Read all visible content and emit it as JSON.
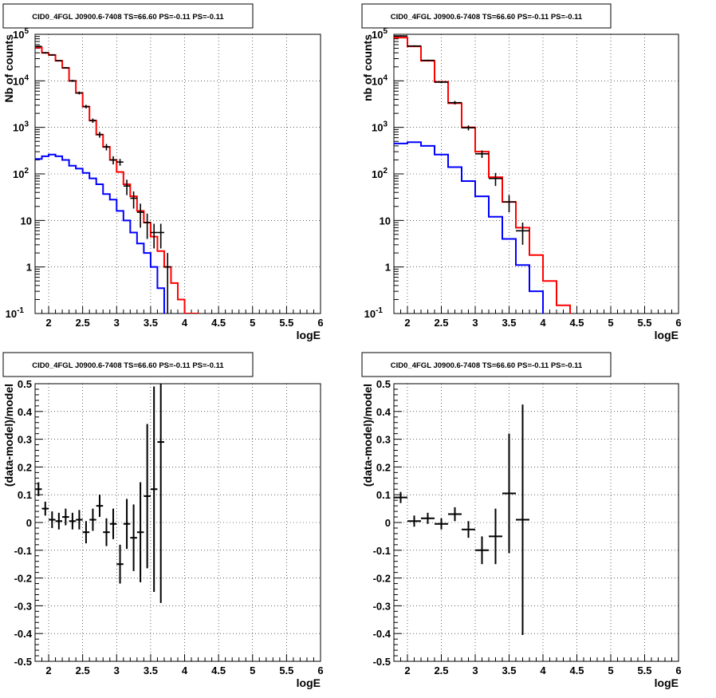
{
  "chart_data": [
    {
      "id": "counts-left",
      "type": "histogram",
      "title": "CID0_4FGL J0900.6-7408 TS=66.60 PS=-0.11 PS=-0.11",
      "xlabel": "logE",
      "ylabel": "Nb of counts",
      "xlim": [
        1.8,
        6.0
      ],
      "ylim": [
        0.1,
        100000
      ],
      "yscale": "log",
      "grid": true,
      "x_ticks": [
        "2",
        "2.5",
        "3",
        "3.5",
        "4",
        "4.5",
        "5",
        "5.5",
        "6"
      ],
      "y_ticks": [
        "10^-1",
        "1",
        "10",
        "10^2",
        "10^3",
        "10^4",
        "10^5"
      ],
      "bin_edges": [
        1.8,
        1.9,
        2.0,
        2.1,
        2.2,
        2.3,
        2.4,
        2.5,
        2.6,
        2.7,
        2.8,
        2.9,
        3.0,
        3.1,
        3.2,
        3.3,
        3.4,
        3.5,
        3.6,
        3.7,
        3.8,
        3.9,
        4.0,
        4.1,
        4.2,
        4.3,
        4.4,
        4.5,
        4.6,
        4.7,
        4.8,
        4.9,
        5.0,
        5.1,
        5.2,
        5.3,
        5.4,
        5.5,
        5.6,
        5.7,
        5.8,
        5.9,
        6.0
      ],
      "series": [
        {
          "color": "#ff0000",
          "style": "step",
          "values": [
            52000,
            40000,
            36000,
            27000,
            19000,
            10000,
            5500,
            2800,
            1400,
            700,
            380,
            200,
            110,
            60,
            33,
            16,
            9,
            4.5,
            2.2,
            1.0,
            0.45,
            0.2,
            0.1,
            0.1,
            0.09,
            0,
            0,
            0,
            0,
            0,
            0,
            0,
            0,
            0,
            0,
            0,
            0,
            0,
            0,
            0,
            0,
            0
          ]
        },
        {
          "color": "#0000ff",
          "style": "step",
          "values": [
            210,
            240,
            260,
            240,
            200,
            150,
            130,
            105,
            80,
            60,
            37,
            28,
            16,
            10,
            5.5,
            3.2,
            2.0,
            1.0,
            0.35,
            0.09,
            0,
            0,
            0,
            0,
            0,
            0,
            0,
            0,
            0,
            0,
            0,
            0,
            0,
            0,
            0,
            0,
            0,
            0,
            0,
            0,
            0,
            0
          ]
        },
        {
          "color": "#000000",
          "style": "errorbar",
          "x": [
            1.85,
            1.95,
            2.05,
            2.15,
            2.25,
            2.35,
            2.45,
            2.55,
            2.65,
            2.75,
            2.85,
            2.95,
            3.05,
            3.15,
            3.25,
            3.35,
            3.45,
            3.55,
            3.65,
            3.75
          ],
          "y": [
            55000,
            40000,
            36000,
            27000,
            19000,
            10000,
            5500,
            2800,
            1400,
            700,
            380,
            200,
            180,
            55,
            30,
            15,
            9,
            5.5,
            5.5,
            1.0
          ],
          "yerr_lo": [
            2000,
            1500,
            1200,
            900,
            700,
            500,
            400,
            250,
            150,
            100,
            60,
            40,
            30,
            20,
            12,
            8,
            5,
            3,
            3,
            0.92
          ],
          "yerr_hi": [
            2000,
            1500,
            1200,
            900,
            700,
            500,
            400,
            250,
            150,
            100,
            60,
            40,
            30,
            20,
            12,
            8,
            5,
            3,
            3,
            1.0
          ]
        }
      ]
    },
    {
      "id": "counts-right",
      "type": "histogram",
      "title": "CID0_4FGL J0900.6-7408 TS=66.60 PS=-0.11 PS=-0.11",
      "xlabel": "logE",
      "ylabel": "nb of counts",
      "xlim": [
        1.8,
        6.0
      ],
      "ylim": [
        0.1,
        100000
      ],
      "yscale": "log",
      "grid": true,
      "x_ticks": [
        "2",
        "2.5",
        "3",
        "3.5",
        "4",
        "4.5",
        "5",
        "5.5",
        "6"
      ],
      "y_ticks": [
        "10^-1",
        "1",
        "10",
        "10^2",
        "10^3",
        "10^4",
        "10^5"
      ],
      "bin_edges": [
        1.8,
        2.0,
        2.2,
        2.4,
        2.6,
        2.8,
        3.0,
        3.2,
        3.4,
        3.6,
        3.8,
        4.0,
        4.2,
        4.4,
        4.6,
        4.8,
        5.0,
        5.2,
        5.4,
        5.6,
        5.8,
        6.0
      ],
      "series": [
        {
          "color": "#ff0000",
          "style": "step",
          "values": [
            85000,
            55000,
            27000,
            9500,
            3300,
            1000,
            300,
            85,
            25,
            7,
            1.8,
            0.5,
            0.15,
            0.09,
            0,
            0,
            0,
            0,
            0,
            0,
            0
          ]
        },
        {
          "color": "#0000ff",
          "style": "step",
          "values": [
            450,
            480,
            400,
            260,
            140,
            70,
            33,
            12,
            4,
            1.1,
            0.3,
            0.09,
            0,
            0,
            0,
            0,
            0,
            0,
            0,
            0,
            0
          ]
        },
        {
          "color": "#000000",
          "style": "errorbar",
          "x": [
            1.9,
            2.1,
            2.3,
            2.5,
            2.7,
            2.9,
            3.1,
            3.3,
            3.5,
            3.7
          ],
          "y": [
            92000,
            56000,
            27500,
            9400,
            3400,
            980,
            270,
            80,
            25,
            6
          ],
          "yerr_lo": [
            3000,
            2000,
            1000,
            500,
            300,
            120,
            50,
            25,
            10,
            3
          ],
          "yerr_hi": [
            3000,
            2000,
            1000,
            500,
            300,
            120,
            50,
            25,
            10,
            3
          ]
        }
      ]
    },
    {
      "id": "residual-left",
      "type": "errorbar",
      "title": "CID0_4FGL J0900.6-7408 TS=66.60 PS=-0.11 PS=-0.11",
      "xlabel": "logE",
      "ylabel": "(data-model)/model",
      "xlim": [
        1.8,
        6.0
      ],
      "ylim": [
        -0.5,
        0.5
      ],
      "grid": true,
      "x_ticks": [
        "2",
        "2.5",
        "3",
        "3.5",
        "4",
        "4.5",
        "5",
        "5.5",
        "6"
      ],
      "y_ticks": [
        "-0.5",
        "-0.4",
        "-0.3",
        "-0.2",
        "-0.1",
        "0",
        "0.1",
        "0.2",
        "0.3",
        "0.4",
        "0.5"
      ],
      "half_width": 0.05,
      "x": [
        1.85,
        1.95,
        2.05,
        2.15,
        2.25,
        2.35,
        2.45,
        2.55,
        2.65,
        2.75,
        2.85,
        2.95,
        3.05,
        3.15,
        3.25,
        3.35,
        3.45,
        3.55,
        3.65
      ],
      "y": [
        0.12,
        0.05,
        0.01,
        0.005,
        0.02,
        0.005,
        0.01,
        -0.035,
        0.01,
        0.06,
        -0.035,
        -0.005,
        -0.15,
        -0.005,
        -0.055,
        -0.035,
        0.095,
        0.12,
        0.29
      ],
      "yerr": [
        0.025,
        0.025,
        0.03,
        0.03,
        0.03,
        0.03,
        0.035,
        0.04,
        0.04,
        0.04,
        0.05,
        0.055,
        0.07,
        0.09,
        0.12,
        0.18,
        0.26,
        0.37,
        0.58
      ]
    },
    {
      "id": "residual-right",
      "type": "errorbar",
      "title": "CID0_4FGL J0900.6-7408 TS=66.60 PS=-0.11 PS=-0.11",
      "xlabel": "logE",
      "ylabel": "(data-model)/model",
      "xlim": [
        1.8,
        6.0
      ],
      "ylim": [
        -0.5,
        0.5
      ],
      "grid": true,
      "x_ticks": [
        "2",
        "2.5",
        "3",
        "3.5",
        "4",
        "4.5",
        "5",
        "5.5",
        "6"
      ],
      "y_ticks": [
        "-0.5",
        "-0.4",
        "-0.3",
        "-0.2",
        "-0.1",
        "0",
        "0.1",
        "0.2",
        "0.3",
        "0.4",
        "0.5"
      ],
      "half_width": 0.1,
      "x": [
        1.9,
        2.1,
        2.3,
        2.5,
        2.7,
        2.9,
        3.1,
        3.3,
        3.5,
        3.7
      ],
      "y": [
        0.09,
        0.005,
        0.015,
        -0.005,
        0.03,
        -0.025,
        -0.1,
        -0.05,
        0.105,
        0.01
      ],
      "yerr": [
        0.02,
        0.02,
        0.02,
        0.02,
        0.025,
        0.03,
        0.05,
        0.1,
        0.215,
        0.415
      ]
    }
  ]
}
